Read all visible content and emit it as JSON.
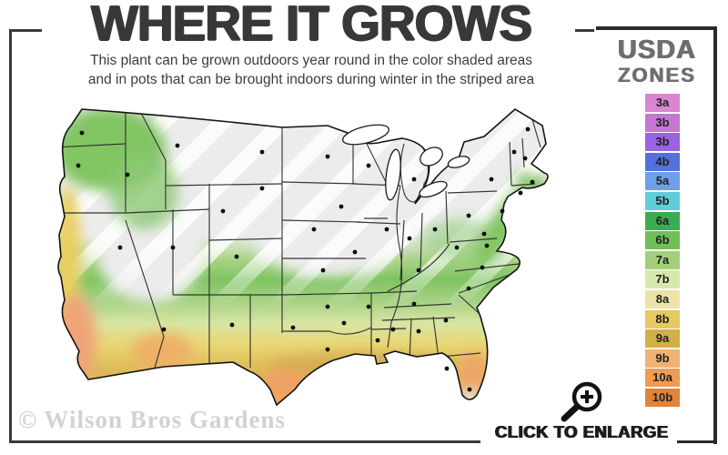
{
  "header": {
    "title": "WHERE IT GROWS",
    "subtitle_line1": "This plant can be grown outdoors year round in the color shaded areas",
    "subtitle_line2": "and in pots that can be brought indoors during winter in the striped area"
  },
  "legend": {
    "title_line1": "USDA",
    "title_line2": "ZONES",
    "zones": [
      {
        "label": "3a",
        "color": "#d985d2"
      },
      {
        "label": "3b",
        "color": "#c377d1"
      },
      {
        "label": "3b",
        "color": "#9963e2"
      },
      {
        "label": "4b",
        "color": "#5570da"
      },
      {
        "label": "5a",
        "color": "#6f9fe8"
      },
      {
        "label": "5b",
        "color": "#5fcdda"
      },
      {
        "label": "6a",
        "color": "#3aac52"
      },
      {
        "label": "6b",
        "color": "#72be58"
      },
      {
        "label": "7a",
        "color": "#a3cf7d"
      },
      {
        "label": "7b",
        "color": "#d7e8ae"
      },
      {
        "label": "8a",
        "color": "#ede3a9"
      },
      {
        "label": "8b",
        "color": "#e6c95f"
      },
      {
        "label": "9a",
        "color": "#d2af49"
      },
      {
        "label": "9b",
        "color": "#f0b274"
      },
      {
        "label": "10a",
        "color": "#ef9b51"
      },
      {
        "label": "10b",
        "color": "#e08438"
      }
    ]
  },
  "map": {
    "striped_area_color": "#ebebeb",
    "stripe_color": "#ffffff",
    "city_marker_color": "#0e0e0e",
    "state_border_color": "#2d2d2d"
  },
  "footer": {
    "watermark": "© Wilson Bros Gardens",
    "enlarge_label": "CLICK TO ENLARGE",
    "enlarge_icon": "magnifier-plus-icon"
  },
  "colors": {
    "title": "#383838",
    "frame": "#3a3a3a",
    "legend_title": "#6e6e6e",
    "watermark": "#d2d2d2"
  }
}
